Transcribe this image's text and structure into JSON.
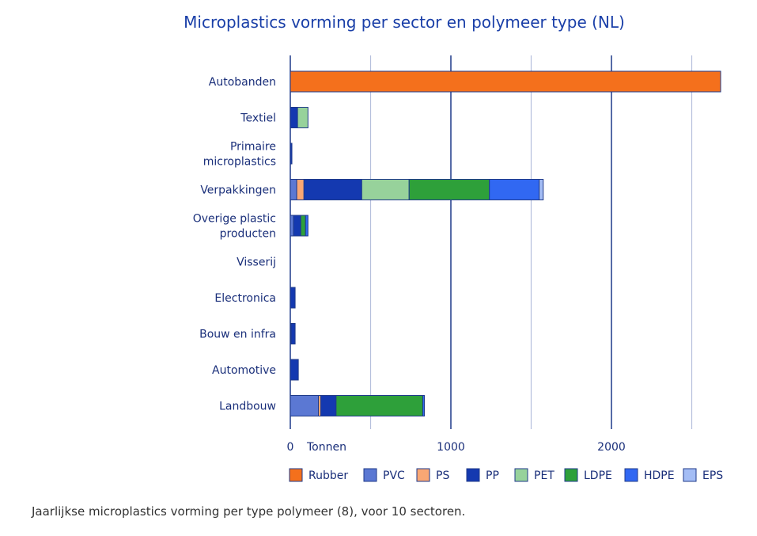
{
  "chart_data": {
    "type": "bar",
    "orientation": "horizontal",
    "stacked": true,
    "title": "Microplastics vorming per sector en polymeer type (NL)",
    "xlabel": "Tonnen",
    "xlim": [
      0,
      2700
    ],
    "xticks": [
      0,
      1000,
      2000
    ],
    "grid": true,
    "legend_position": "bottom",
    "categories": [
      "Autobanden",
      "Textiel",
      "Primaire microplastics",
      "Verpakkingen",
      "Overige plastic producten",
      "Visserij",
      "Electronica",
      "Bouw en infra",
      "Automotive",
      "Landbouw"
    ],
    "category_lines": [
      [
        "Autobanden"
      ],
      [
        "Textiel"
      ],
      [
        "Primaire",
        "microplastics"
      ],
      [
        "Verpakkingen"
      ],
      [
        "Overige plastic",
        "producten"
      ],
      [
        "Visserij"
      ],
      [
        "Electronica"
      ],
      [
        "Bouw en infra"
      ],
      [
        "Automotive"
      ],
      [
        "Landbouw"
      ]
    ],
    "series": [
      {
        "name": "Rubber",
        "color": "#f4701c",
        "values": [
          2680,
          0,
          0,
          0,
          0,
          0,
          0,
          0,
          0,
          0
        ]
      },
      {
        "name": "PVC",
        "color": "#5b78d3",
        "values": [
          0,
          0,
          0,
          40,
          20,
          0,
          0,
          5,
          0,
          175
        ]
      },
      {
        "name": "PS",
        "color": "#f9a774",
        "values": [
          0,
          0,
          0,
          45,
          0,
          0,
          0,
          0,
          0,
          15
        ]
      },
      {
        "name": "PP",
        "color": "#1439b0",
        "values": [
          0,
          45,
          10,
          360,
          45,
          0,
          30,
          25,
          50,
          95
        ]
      },
      {
        "name": "PET",
        "color": "#97d29b",
        "values": [
          0,
          65,
          0,
          295,
          0,
          0,
          0,
          0,
          0,
          0
        ]
      },
      {
        "name": "LDPE",
        "color": "#2ea03a",
        "values": [
          0,
          0,
          0,
          500,
          30,
          0,
          0,
          0,
          0,
          540
        ]
      },
      {
        "name": "HDPE",
        "color": "#3168f2",
        "values": [
          0,
          0,
          0,
          310,
          15,
          0,
          0,
          0,
          0,
          10
        ]
      },
      {
        "name": "EPS",
        "color": "#a4bdf5",
        "values": [
          0,
          0,
          0,
          25,
          0,
          0,
          0,
          0,
          0,
          0
        ]
      }
    ]
  },
  "caption": "Jaarlijkse microplastics vorming per type polymeer (8), voor 10 sectoren."
}
